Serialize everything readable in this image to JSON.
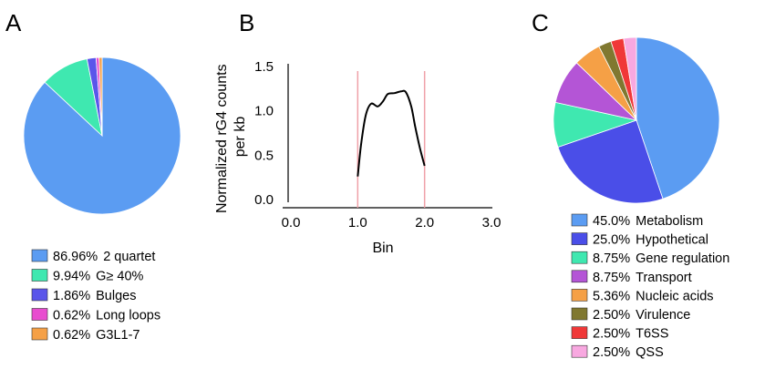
{
  "panels": {
    "a": "A",
    "b": "B",
    "c": "C"
  },
  "chart_data": [
    {
      "panel": "A",
      "type": "pie",
      "labels": [
        "2 quartet",
        "G≥ 40%",
        "Bulges",
        "Long loops",
        "G3L1-7"
      ],
      "percent_labels": [
        "86.96%",
        "9.94%",
        "1.86%",
        "0.62%",
        "0.62%"
      ],
      "values": [
        86.96,
        9.94,
        1.86,
        0.62,
        0.62
      ],
      "colors": [
        "#5b9cf2",
        "#3fe8b0",
        "#5a55ea",
        "#e84ccf",
        "#f5a046"
      ],
      "legend": "bottom"
    },
    {
      "panel": "B",
      "type": "line",
      "xlabel": "Bin",
      "ylabel": "Normalized rG4 counts per kb",
      "ylabel_lines": [
        "Normalized rG4 counts",
        "per kb"
      ],
      "xlim": [
        0,
        3
      ],
      "ylim": [
        0,
        1.5
      ],
      "xticks": [
        "0.0",
        "1.0",
        "2.0",
        "3.0"
      ],
      "yticks": [
        "0.0",
        "0.5",
        "1.0",
        "1.5"
      ],
      "vlines": [
        1.0,
        2.0
      ],
      "vline_color": "#f0a0a8",
      "line_color": "#000000",
      "series": [
        {
          "x": [
            1.0,
            1.05,
            1.12,
            1.2,
            1.3,
            1.38,
            1.45,
            1.55,
            1.65,
            1.72,
            1.8,
            1.86,
            1.93,
            2.0
          ],
          "y": [
            0.26,
            0.62,
            0.95,
            1.08,
            1.05,
            1.11,
            1.19,
            1.2,
            1.22,
            1.21,
            1.05,
            0.82,
            0.58,
            0.38
          ]
        }
      ]
    },
    {
      "panel": "C",
      "type": "pie",
      "labels": [
        "Metabolism",
        "Hypothetical",
        "Gene regulation",
        "Transport",
        "Nucleic acids",
        "Virulence",
        "T6SS",
        "QSS"
      ],
      "percent_labels": [
        "45.0%",
        "25.0%",
        "8.75%",
        "8.75%",
        "5.36%",
        "2.50%",
        "2.50%",
        "2.50%"
      ],
      "values": [
        45.0,
        25.0,
        8.75,
        8.75,
        5.36,
        2.5,
        2.5,
        2.5
      ],
      "colors": [
        "#5b9cf2",
        "#4a4ee8",
        "#3fe8b0",
        "#b455d6",
        "#f5a046",
        "#807830",
        "#f03838",
        "#f8a8e0"
      ],
      "legend": "bottom"
    }
  ]
}
